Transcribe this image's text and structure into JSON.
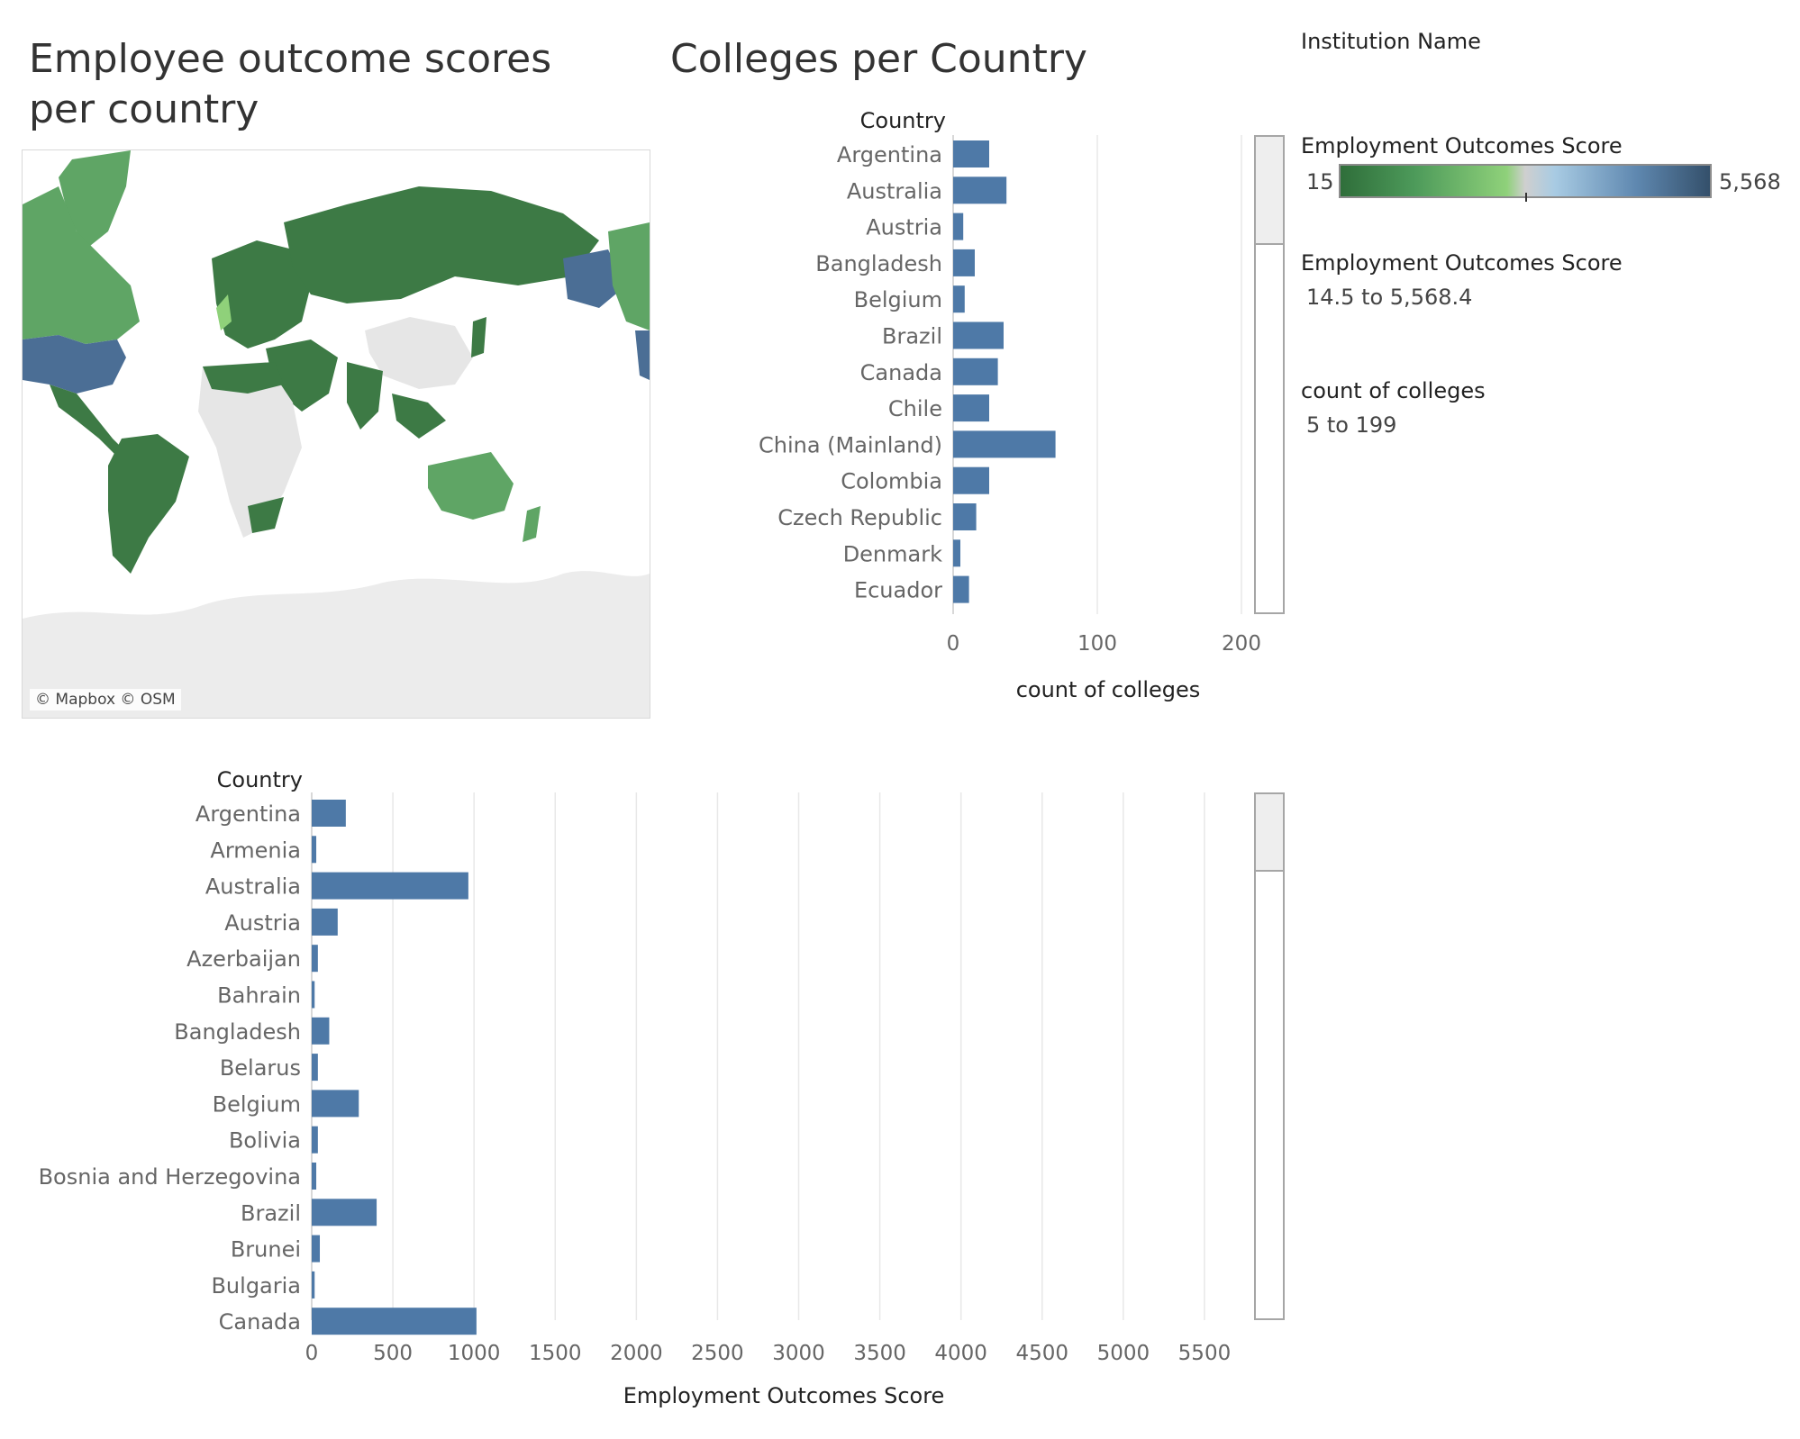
{
  "map_section": {
    "title": "Employee outcome scores per country",
    "credit": "© Mapbox © OSM"
  },
  "colleges_section": {
    "title": "Colleges per Country"
  },
  "legend": {
    "institution_name": "Institution Name",
    "color_title": "Employment Outcomes Score",
    "color_min_label": "15",
    "color_max_label": "5,568",
    "filter1_title": "Employment Outcomes Score",
    "filter1_range": "14.5 to 5,568.4",
    "filter2_title": "count of colleges",
    "filter2_range": "5 to 199",
    "colors": {
      "green_dark": "#2f6e3a",
      "green_light": "#8fd17a",
      "grey_mid": "#cfcfcf",
      "blue_light": "#a8cbe3",
      "blue_dark": "#34506b"
    }
  },
  "chart_data": [
    {
      "type": "bar",
      "orientation": "horizontal",
      "title": "Colleges per Country",
      "category_header": "Country",
      "xlabel": "count of colleges",
      "xlim": [
        0,
        200
      ],
      "x_ticks": [
        "0",
        "100",
        "200"
      ],
      "x_tick_values": [
        0,
        100,
        200
      ],
      "bar_color": "#4e79a7",
      "categories": [
        "Argentina",
        "Australia",
        "Austria",
        "Bangladesh",
        "Belgium",
        "Brazil",
        "Canada",
        "Chile",
        "China (Mainland)",
        "Colombia",
        "Czech Republic",
        "Denmark",
        "Ecuador"
      ],
      "values": [
        25,
        37,
        7,
        15,
        8,
        35,
        31,
        25,
        71,
        25,
        16,
        5,
        11
      ]
    },
    {
      "type": "bar",
      "orientation": "horizontal",
      "title": "",
      "category_header": "Country",
      "xlabel": "Employment Outcomes Score",
      "xlim": [
        0,
        5800
      ],
      "x_ticks": [
        "0",
        "500",
        "1000",
        "1500",
        "2000",
        "2500",
        "3000",
        "3500",
        "4000",
        "4500",
        "5000",
        "5500"
      ],
      "x_tick_values": [
        0,
        500,
        1000,
        1500,
        2000,
        2500,
        3000,
        3500,
        4000,
        4500,
        5000,
        5500
      ],
      "bar_color": "#4e79a7",
      "categories": [
        "Argentina",
        "Armenia",
        "Australia",
        "Austria",
        "Azerbaijan",
        "Bahrain",
        "Bangladesh",
        "Belarus",
        "Belgium",
        "Bolivia",
        "Bosnia and Herzegovina",
        "Brazil",
        "Brunei",
        "Bulgaria",
        "Canada"
      ],
      "values": [
        210,
        28,
        965,
        160,
        38,
        18,
        108,
        38,
        290,
        38,
        28,
        400,
        50,
        18,
        1015
      ]
    }
  ]
}
